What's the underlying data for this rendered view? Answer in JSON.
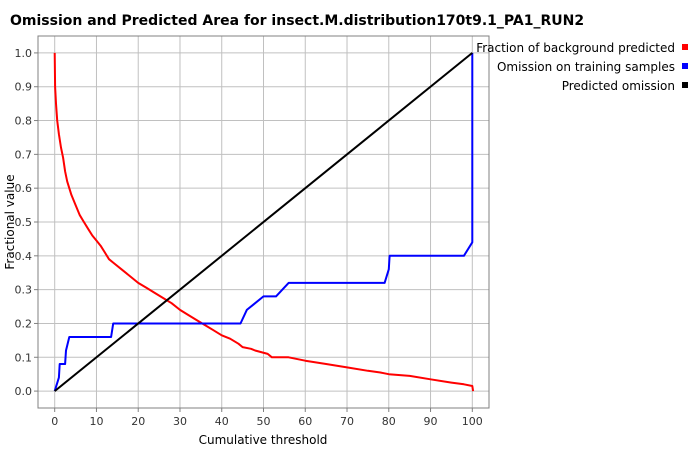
{
  "chart_data": {
    "type": "line",
    "title": "Omission and Predicted Area for insect.M.distribution170t9.1_PA1_RUN2",
    "xlabel": "Cumulative threshold",
    "ylabel": "Fractional value",
    "xlim": [
      -4,
      104
    ],
    "ylim": [
      -0.05,
      1.05
    ],
    "xticks": [
      0,
      10,
      20,
      30,
      40,
      50,
      60,
      70,
      80,
      90,
      100
    ],
    "yticks": [
      0.0,
      0.1,
      0.2,
      0.3,
      0.4,
      0.5,
      0.6,
      0.7,
      0.8,
      0.9,
      1.0
    ],
    "ytick_labels": [
      "0.0",
      "0.1",
      "0.2",
      "0.3",
      "0.4",
      "0.5",
      "0.6",
      "0.7",
      "0.8",
      "0.9",
      "1.0"
    ],
    "grid": true,
    "legend_position": "right",
    "series": [
      {
        "name": "Fraction of background predicted",
        "color": "#ff0000",
        "points": [
          [
            0,
            1.0
          ],
          [
            0.1,
            0.9
          ],
          [
            0.3,
            0.85
          ],
          [
            0.6,
            0.8
          ],
          [
            1,
            0.76
          ],
          [
            1.5,
            0.72
          ],
          [
            2,
            0.69
          ],
          [
            2.5,
            0.65
          ],
          [
            3,
            0.62
          ],
          [
            4,
            0.58
          ],
          [
            5,
            0.55
          ],
          [
            6,
            0.52
          ],
          [
            7,
            0.5
          ],
          [
            8,
            0.48
          ],
          [
            9,
            0.46
          ],
          [
            10,
            0.445
          ],
          [
            11,
            0.43
          ],
          [
            12,
            0.41
          ],
          [
            13,
            0.39
          ],
          [
            14,
            0.38
          ],
          [
            16,
            0.36
          ],
          [
            18,
            0.34
          ],
          [
            20,
            0.32
          ],
          [
            22,
            0.305
          ],
          [
            24,
            0.29
          ],
          [
            26,
            0.275
          ],
          [
            28,
            0.26
          ],
          [
            30,
            0.24
          ],
          [
            32,
            0.225
          ],
          [
            34,
            0.21
          ],
          [
            36,
            0.195
          ],
          [
            38,
            0.18
          ],
          [
            40,
            0.165
          ],
          [
            42,
            0.155
          ],
          [
            44,
            0.14
          ],
          [
            45,
            0.13
          ],
          [
            47,
            0.125
          ],
          [
            48,
            0.12
          ],
          [
            51,
            0.11
          ],
          [
            52,
            0.1
          ],
          [
            56,
            0.1
          ],
          [
            60,
            0.09
          ],
          [
            65,
            0.08
          ],
          [
            70,
            0.07
          ],
          [
            75,
            0.06
          ],
          [
            78,
            0.055
          ],
          [
            80,
            0.05
          ],
          [
            85,
            0.045
          ],
          [
            90,
            0.035
          ],
          [
            95,
            0.025
          ],
          [
            98,
            0.02
          ],
          [
            100,
            0.015
          ],
          [
            100.2,
            0.0
          ]
        ]
      },
      {
        "name": "Omission on training samples",
        "color": "#0000ff",
        "points": [
          [
            0,
            0.0
          ],
          [
            1,
            0.04
          ],
          [
            1.2,
            0.08
          ],
          [
            2.5,
            0.08
          ],
          [
            2.7,
            0.12
          ],
          [
            3.5,
            0.16
          ],
          [
            13.5,
            0.16
          ],
          [
            14,
            0.2
          ],
          [
            44.5,
            0.2
          ],
          [
            46,
            0.24
          ],
          [
            48,
            0.26
          ],
          [
            50,
            0.28
          ],
          [
            53,
            0.28
          ],
          [
            56,
            0.32
          ],
          [
            79,
            0.32
          ],
          [
            80,
            0.36
          ],
          [
            80.2,
            0.4
          ],
          [
            98,
            0.4
          ],
          [
            100,
            0.44
          ],
          [
            100,
            1.0
          ]
        ]
      },
      {
        "name": "Predicted omission",
        "color": "#000000",
        "points": [
          [
            0,
            0.0
          ],
          [
            100,
            1.0
          ]
        ]
      }
    ]
  }
}
